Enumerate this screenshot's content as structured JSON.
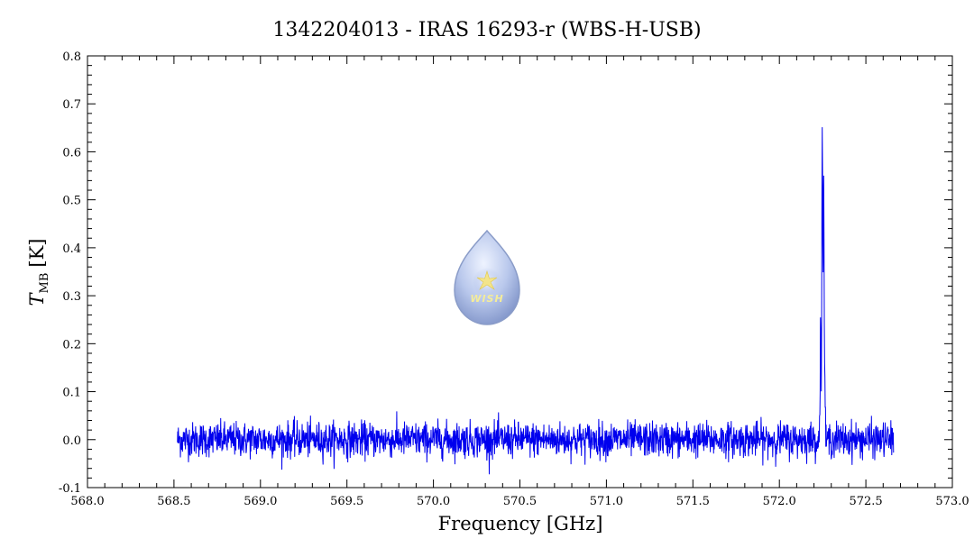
{
  "chart_data": {
    "type": "line",
    "title": "1342204013 - IRAS 16293-r (WBS-H-USB)",
    "xlabel": "Frequency [GHz]",
    "ylabel_main": "T",
    "ylabel_sub": "MB",
    "ylabel_unit": "[K]",
    "xlim": [
      568.0,
      573.0
    ],
    "ylim": [
      -0.1,
      0.8
    ],
    "xticks": [
      "568.0",
      "569.0",
      "569.5",
      "570.0",
      "570.5",
      "571.0",
      "571.5",
      "572.0",
      "572.5",
      "573.0"
    ],
    "xtick_values": [
      568.0,
      569.0,
      569.5,
      570.0,
      570.5,
      571.0,
      571.5,
      572.0,
      572.5,
      573.0
    ],
    "xtick_extra": {
      "label": "568.5",
      "value": 568.5
    },
    "yticks": [
      "-0.1",
      "0.0",
      "0.1",
      "0.2",
      "0.3",
      "0.4",
      "0.5",
      "0.6",
      "0.7",
      "0.8"
    ],
    "ytick_values": [
      -0.1,
      0.0,
      0.1,
      0.2,
      0.3,
      0.4,
      0.5,
      0.6,
      0.7,
      0.8
    ],
    "grid": false,
    "series": [
      {
        "color": "#0000ee",
        "x_range": [
          568.52,
          572.66
        ],
        "baseline": 0.0,
        "noise_rms": 0.018,
        "peaks": [
          {
            "x": 572.248,
            "y": 0.69
          },
          {
            "x": 572.256,
            "y": 0.55
          },
          {
            "x": 572.262,
            "y": 0.13
          },
          {
            "x": 572.238,
            "y": 0.26
          }
        ]
      }
    ],
    "logo": {
      "text": "WISH"
    }
  }
}
